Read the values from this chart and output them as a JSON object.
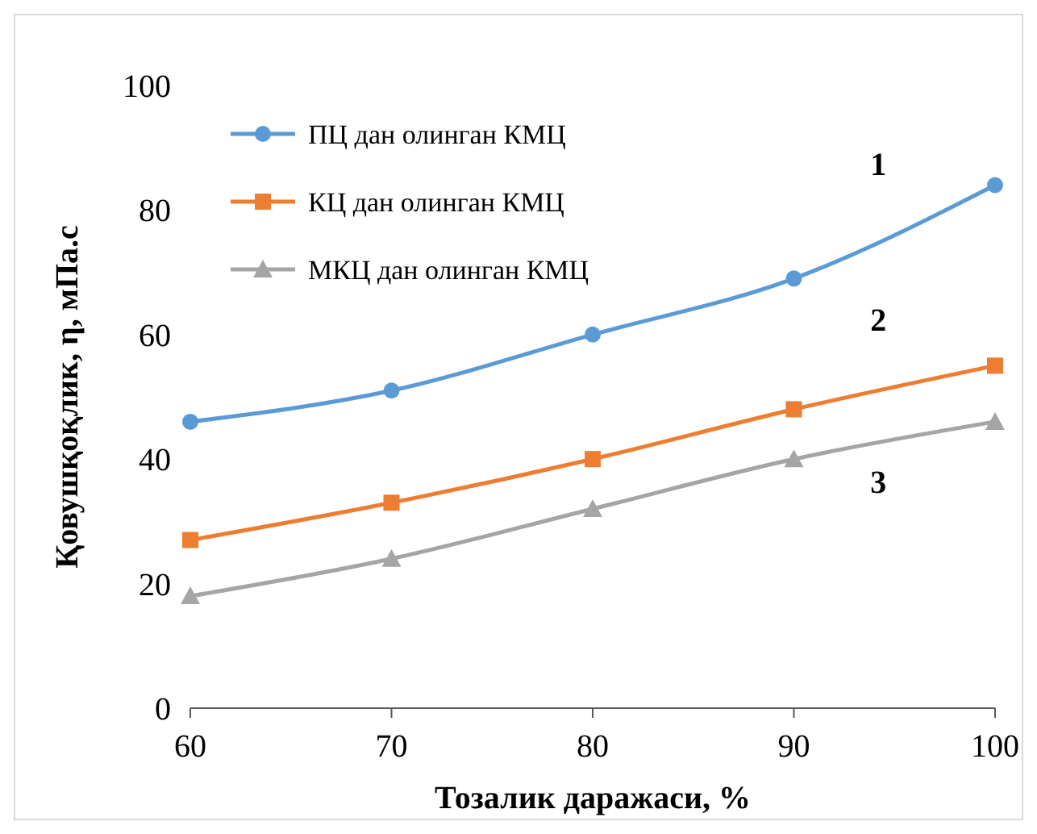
{
  "chart_data": {
    "type": "line",
    "xlabel": "Тозалик даражаси, %",
    "ylabel": "Қовушқоқлик, η, мПа.с",
    "x": [
      60,
      70,
      80,
      90,
      100
    ],
    "series": [
      {
        "name": "ПЦ дан олинган КМЦ",
        "color": "#5b9bd5",
        "marker": "circle",
        "values": [
          46,
          51,
          60,
          69,
          84
        ]
      },
      {
        "name": "КЦ дан олинган КМЦ",
        "color": "#ed7d31",
        "marker": "square",
        "values": [
          27,
          33,
          40,
          48,
          55
        ]
      },
      {
        "name": "МКЦ дан олинган КМЦ",
        "color": "#a5a5a5",
        "marker": "triangle",
        "values": [
          18,
          24,
          32,
          40,
          46
        ]
      }
    ],
    "xlim": [
      60,
      100
    ],
    "xticks": [
      60,
      70,
      80,
      90,
      100
    ],
    "ylim": [
      0,
      100
    ],
    "yticks": [
      0,
      20,
      40,
      60,
      80,
      100
    ],
    "legend": "top left",
    "grid": false,
    "annotations": [
      "1",
      "2",
      "3"
    ]
  }
}
